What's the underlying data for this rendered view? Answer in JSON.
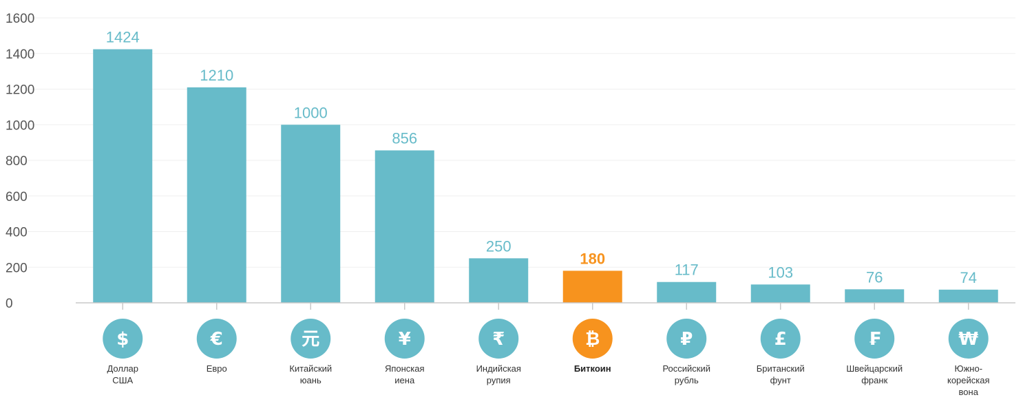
{
  "chart_data": {
    "type": "bar",
    "ylim": [
      0,
      1600
    ],
    "yticks": [
      0,
      200,
      400,
      600,
      800,
      1000,
      1200,
      1400,
      1600
    ],
    "grid": true,
    "bar_color": "#67bbc9",
    "highlight_color": "#f7931e",
    "axis_color": "#c8c8c8",
    "categories": [
      {
        "label": [
          "Доллар",
          "США"
        ],
        "value": 1424,
        "display_value": "1424",
        "symbol": "$",
        "icon": "dollar-icon",
        "highlight": false
      },
      {
        "label": [
          "Евро"
        ],
        "value": 1210,
        "display_value": "1210",
        "symbol": "€",
        "icon": "euro-icon",
        "highlight": false
      },
      {
        "label": [
          "Китайский",
          "юань"
        ],
        "value": 1000,
        "display_value": "1000",
        "symbol": "元",
        "icon": "yuan-icon",
        "highlight": false
      },
      {
        "label": [
          "Японская",
          "иена"
        ],
        "value": 856,
        "display_value": "856",
        "symbol": "¥",
        "icon": "yen-icon",
        "highlight": false
      },
      {
        "label": [
          "Индийская",
          "рупия"
        ],
        "value": 250,
        "display_value": "250",
        "symbol": "₹",
        "icon": "rupee-icon",
        "highlight": false
      },
      {
        "label": [
          "Биткоин"
        ],
        "value": 180,
        "display_value": "180",
        "symbol": "₿",
        "icon": "bitcoin-icon",
        "highlight": true
      },
      {
        "label": [
          "Российский",
          "рубль"
        ],
        "value": 117,
        "display_value": "117",
        "symbol": "₽",
        "icon": "ruble-icon",
        "highlight": false
      },
      {
        "label": [
          "Британский",
          "фунт"
        ],
        "value": 103,
        "display_value": "103",
        "symbol": "£",
        "icon": "pound-icon",
        "highlight": false
      },
      {
        "label": [
          "Швейцарский",
          "франк"
        ],
        "value": 76,
        "display_value": "76",
        "symbol": "₣",
        "icon": "franc-icon",
        "highlight": false
      },
      {
        "label": [
          "Южно-",
          "корейская",
          "вона"
        ],
        "value": 74,
        "display_value": "74",
        "symbol": "₩",
        "icon": "won-icon",
        "highlight": false
      }
    ]
  }
}
